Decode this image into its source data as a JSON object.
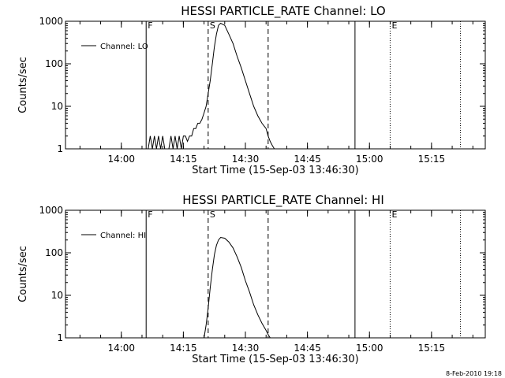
{
  "footer_timestamp": "8-Feb-2010 19:18",
  "colors": {
    "background": "#ffffff",
    "ink": "#000000"
  },
  "chart_data": [
    {
      "type": "line",
      "title": "HESSI PARTICLE_RATE Channel: LO",
      "xlabel": "Start Time (15-Sep-03 13:46:30)",
      "ylabel": "Counts/sec",
      "y_scale": "log",
      "ylim": [
        1,
        1000
      ],
      "xlim": [
        "13:46:30",
        "15:28:00"
      ],
      "x_ticks": [
        "14:00",
        "14:15",
        "14:30",
        "14:45",
        "15:00",
        "15:15"
      ],
      "y_ticks": [
        "1",
        "10",
        "100",
        "1000"
      ],
      "legend": "top-left",
      "grid": false,
      "series": [
        {
          "name": "Channel: LO",
          "x": [
            "14:06:30",
            "14:07:00",
            "14:07:30",
            "14:08:00",
            "14:08:30",
            "14:09:00",
            "14:09:30",
            "14:10:00",
            "14:10:30",
            "14:11:00",
            "14:11:30",
            "14:12:00",
            "14:12:30",
            "14:13:00",
            "14:13:30",
            "14:14:00",
            "14:14:30",
            "14:15:00",
            "14:15:30",
            "14:16:00",
            "14:16:30",
            "14:17:00",
            "14:17:30",
            "14:18:00",
            "14:18:30",
            "14:19:00",
            "14:19:30",
            "14:20:00",
            "14:20:30",
            "14:21:00",
            "14:21:30",
            "14:22:00",
            "14:22:30",
            "14:23:00",
            "14:23:30",
            "14:24:00",
            "14:25:00",
            "14:26:00",
            "14:27:00",
            "14:28:00",
            "14:29:00",
            "14:30:00",
            "14:31:00",
            "14:32:00",
            "14:33:00",
            "14:34:00",
            "14:35:00",
            "14:35:30",
            "14:36:00",
            "14:36:30",
            "14:37:00"
          ],
          "y": [
            1,
            2,
            1,
            2,
            1,
            2,
            1,
            2,
            1,
            1,
            1,
            2,
            1,
            2,
            1,
            2,
            1,
            2,
            2,
            1.5,
            2,
            2,
            3,
            3,
            4,
            4,
            5,
            7,
            10,
            20,
            40,
            100,
            250,
            500,
            800,
            900,
            800,
            500,
            300,
            150,
            80,
            40,
            20,
            10,
            6,
            4,
            3,
            2,
            1.5,
            1.2,
            1
          ]
        }
      ],
      "markers": [
        {
          "label": "F",
          "x": "14:06:00",
          "style": "solid"
        },
        {
          "label": "S",
          "x": "14:21:00",
          "style": "dashed"
        },
        {
          "label": "",
          "x": "14:35:30",
          "style": "dashed"
        },
        {
          "label": "",
          "x": "14:56:30",
          "style": "solid"
        },
        {
          "label": "E",
          "x": "15:05:00",
          "style": "dotted"
        },
        {
          "label": "",
          "x": "15:22:00",
          "style": "dotted"
        }
      ]
    },
    {
      "type": "line",
      "title": "HESSI PARTICLE_RATE Channel: HI",
      "xlabel": "Start Time (15-Sep-03 13:46:30)",
      "ylabel": "Counts/sec",
      "y_scale": "log",
      "ylim": [
        1,
        1000
      ],
      "xlim": [
        "13:46:30",
        "15:28:00"
      ],
      "x_ticks": [
        "14:00",
        "14:15",
        "14:30",
        "14:45",
        "15:00",
        "15:15"
      ],
      "y_ticks": [
        "1",
        "10",
        "100",
        "1000"
      ],
      "legend": "top-left",
      "grid": false,
      "series": [
        {
          "name": "Channel: HI",
          "x": [
            "14:20:00",
            "14:20:30",
            "14:21:00",
            "14:21:30",
            "14:22:00",
            "14:22:30",
            "14:23:00",
            "14:23:30",
            "14:24:00",
            "14:25:00",
            "14:26:00",
            "14:27:00",
            "14:28:00",
            "14:29:00",
            "14:30:00",
            "14:31:00",
            "14:32:00",
            "14:33:00",
            "14:34:00",
            "14:35:00",
            "14:35:30",
            "14:36:00"
          ],
          "y": [
            1,
            2,
            5,
            15,
            40,
            90,
            150,
            200,
            230,
            220,
            180,
            130,
            80,
            45,
            22,
            12,
            6,
            3.5,
            2.2,
            1.5,
            1.2,
            1
          ]
        }
      ],
      "markers": [
        {
          "label": "F",
          "x": "14:06:00",
          "style": "solid"
        },
        {
          "label": "S",
          "x": "14:21:00",
          "style": "dashed"
        },
        {
          "label": "",
          "x": "14:35:30",
          "style": "dashed"
        },
        {
          "label": "",
          "x": "14:56:30",
          "style": "solid"
        },
        {
          "label": "E",
          "x": "15:05:00",
          "style": "dotted"
        },
        {
          "label": "",
          "x": "15:22:00",
          "style": "dotted"
        }
      ]
    }
  ]
}
